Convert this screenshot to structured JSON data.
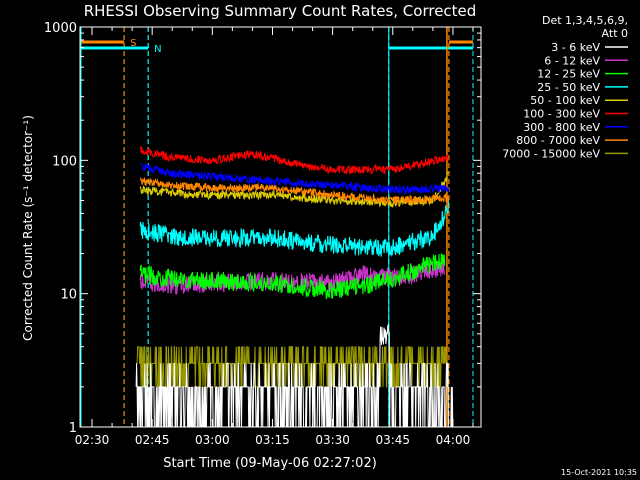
{
  "chart_data": {
    "type": "line",
    "title": "RHESSI Observing Summary Count Rates, Corrected",
    "xlabel": "Start Time (09-May-06 02:27:02)",
    "ylabel": "Corrected Count Rate (s⁻¹ detector⁻¹)",
    "timestamp": "15-Oct-2021 10:35",
    "y_scale": "log",
    "ylim": [
      1,
      1000
    ],
    "xlim": [
      "02:27",
      "04:07"
    ],
    "x_ticks": [
      "02:30",
      "02:45",
      "03:00",
      "03:15",
      "03:30",
      "03:45",
      "04:00"
    ],
    "y_ticks": [
      "1",
      "10",
      "100",
      "1000"
    ],
    "legend": {
      "header_line1": "Det 1,3,4,5,6,9,",
      "header_line2": "Att 0",
      "placement": "right"
    },
    "series": [
      {
        "name": "3 - 6 keV",
        "color": "#000000",
        "x": [
          "02:41",
          "02:50",
          "03:10",
          "03:30",
          "03:40",
          "03:43",
          "03:50",
          "04:00"
        ],
        "y": [
          4.0,
          2.0,
          1.6,
          1.7,
          2.0,
          5.2,
          2.0,
          2.0
        ]
      },
      {
        "name": "6 - 12 keV",
        "color": "#cc33cc",
        "x": [
          "02:42",
          "02:50",
          "03:00",
          "03:15",
          "03:30",
          "03:38",
          "03:45",
          "03:58"
        ],
        "y": [
          12,
          11.5,
          12,
          12.5,
          12,
          14,
          13,
          16
        ]
      },
      {
        "name": "12 - 25 keV",
        "color": "#00ff00",
        "x": [
          "02:42",
          "02:50",
          "03:00",
          "03:15",
          "03:30",
          "03:38",
          "03:45",
          "03:58"
        ],
        "y": [
          14,
          13,
          12.5,
          12,
          10.5,
          11.5,
          13,
          18
        ]
      },
      {
        "name": "25 - 50 keV",
        "color": "#00ffff",
        "x": [
          "02:42",
          "02:50",
          "03:00",
          "03:15",
          "03:30",
          "03:45",
          "03:55",
          "03:59"
        ],
        "y": [
          30,
          27,
          26,
          26,
          23,
          22,
          27,
          45
        ]
      },
      {
        "name": "50 - 100 keV",
        "color": "#ddcc00",
        "x": [
          "02:42",
          "02:50",
          "03:00",
          "03:15",
          "03:30",
          "03:45",
          "03:55",
          "03:59"
        ],
        "y": [
          60,
          57,
          55,
          55,
          50,
          48,
          50,
          80
        ]
      },
      {
        "name": "100 - 300 keV",
        "color": "#ff0000",
        "x": [
          "02:42",
          "02:50",
          "03:00",
          "03:10",
          "03:20",
          "03:30",
          "03:45",
          "03:59"
        ],
        "y": [
          120,
          105,
          100,
          112,
          95,
          85,
          85,
          105
        ]
      },
      {
        "name": "300 - 800 keV",
        "color": "#0000ff",
        "x": [
          "02:42",
          "02:50",
          "03:00",
          "03:15",
          "03:30",
          "03:45",
          "03:59"
        ],
        "y": [
          90,
          80,
          75,
          70,
          65,
          60,
          62
        ]
      },
      {
        "name": "800 - 7000 keV",
        "color": "#ff8800",
        "x": [
          "02:42",
          "02:50",
          "03:00",
          "03:15",
          "03:30",
          "03:45",
          "03:59"
        ],
        "y": [
          70,
          65,
          62,
          62,
          55,
          50,
          52
        ]
      },
      {
        "name": "7000 - 15000 keV",
        "color": "#999900",
        "x": [
          "02:41",
          "02:45",
          "03:03",
          "03:15",
          "03:30",
          "03:45",
          "03:59"
        ],
        "y": [
          3,
          2.9,
          3.0,
          4.0,
          3.5,
          3.0,
          4.0
        ]
      }
    ],
    "markers": [
      {
        "label": "S",
        "color": "#ff8800",
        "x": "02:38",
        "bar_start": "02:27",
        "bar_end": "02:38"
      },
      {
        "label": "N",
        "color": "#00ffff",
        "x": "02:44",
        "bar_start": "02:27",
        "bar_end": "02:44"
      },
      {
        "label": "",
        "color": "#00ffff",
        "x": "03:44",
        "bar_start": "03:44",
        "bar_end": "04:05"
      },
      {
        "label": "",
        "color": "#ff8800",
        "x": "03:59",
        "bar_start": "03:59",
        "bar_end": "04:05"
      }
    ]
  }
}
